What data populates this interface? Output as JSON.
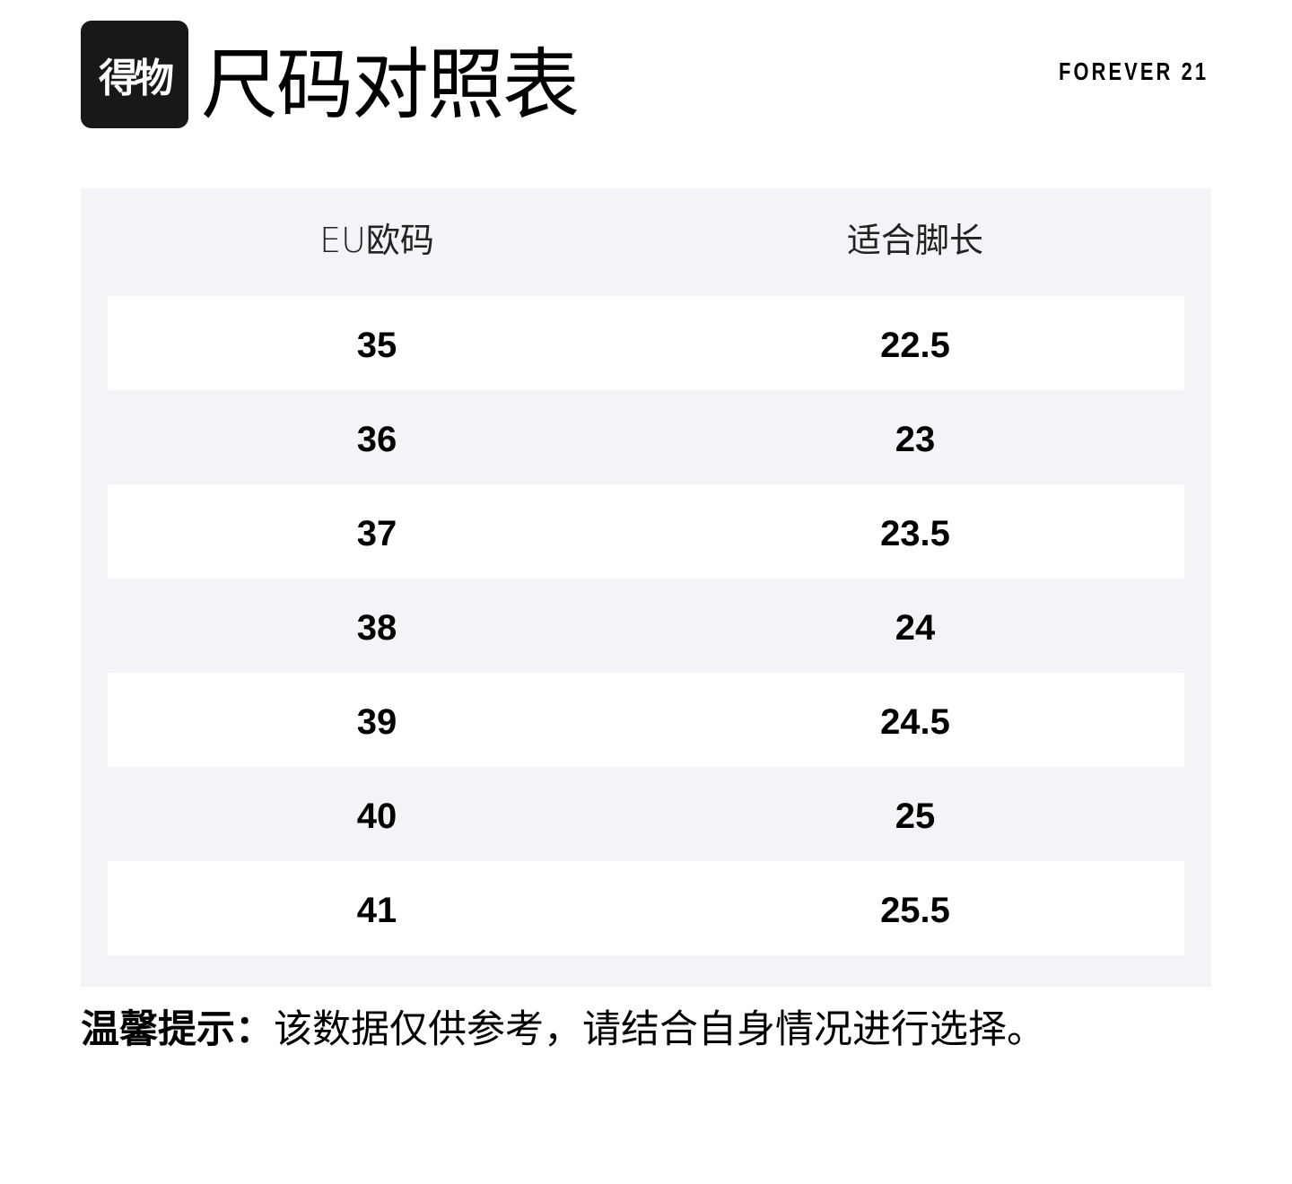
{
  "logo": {
    "text": "得物"
  },
  "title": "尺码对照表",
  "brand": "FOREVER 21",
  "table": {
    "headers": [
      "EU欧码",
      "适合脚长"
    ],
    "rows": [
      [
        "35",
        "22.5"
      ],
      [
        "36",
        "23"
      ],
      [
        "37",
        "23.5"
      ],
      [
        "38",
        "24"
      ],
      [
        "39",
        "24.5"
      ],
      [
        "40",
        "25"
      ],
      [
        "41",
        "25.5"
      ]
    ]
  },
  "note": {
    "label": "温馨提示：",
    "text": "该数据仅供参考，请结合自身情况进行选择。"
  },
  "colors": {
    "panel": "#f4f4f8",
    "logo_bg": "#18181b"
  }
}
